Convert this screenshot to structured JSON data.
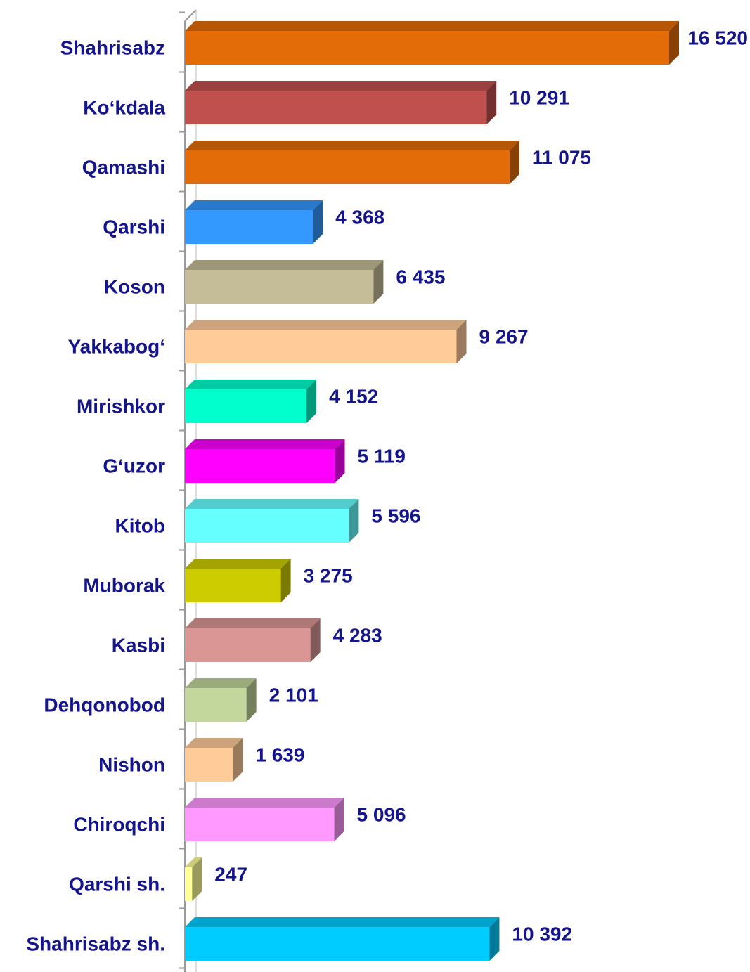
{
  "chart_data": {
    "type": "bar",
    "categories": [
      "Shahrisabz",
      "Ko‘kdala",
      "Qamashi",
      "Qarshi",
      "Koson",
      "Yakkabog‘",
      "Mirishkor",
      "G‘uzor",
      "Kitob",
      "Muborak",
      "Kasbi",
      "Dehqonobod",
      "Nishon",
      "Chiroqchi",
      "Qarshi sh.",
      "Shahrisabz sh."
    ],
    "values": [
      16520,
      10291,
      11075,
      4368,
      6435,
      9267,
      4152,
      5119,
      5596,
      3275,
      4283,
      2101,
      1639,
      5096,
      247,
      10392
    ],
    "value_labels": [
      "16 520",
      "10 291",
      "11 075",
      "4 368",
      "6 435",
      "9 267",
      "4 152",
      "5 119",
      "5 596",
      "3 275",
      "4 283",
      "2 101",
      "1 639",
      "5 096",
      "247",
      "10 392"
    ],
    "colors": [
      "#e36c09",
      "#c0504d",
      "#e36c09",
      "#3399ff",
      "#c4bd97",
      "#ffcc99",
      "#00ffcc",
      "#ff00ff",
      "#66ffff",
      "#cccc00",
      "#d99694",
      "#c3d69b",
      "#ffcc99",
      "#ff99ff",
      "#ffff99",
      "#00ccff"
    ]
  }
}
